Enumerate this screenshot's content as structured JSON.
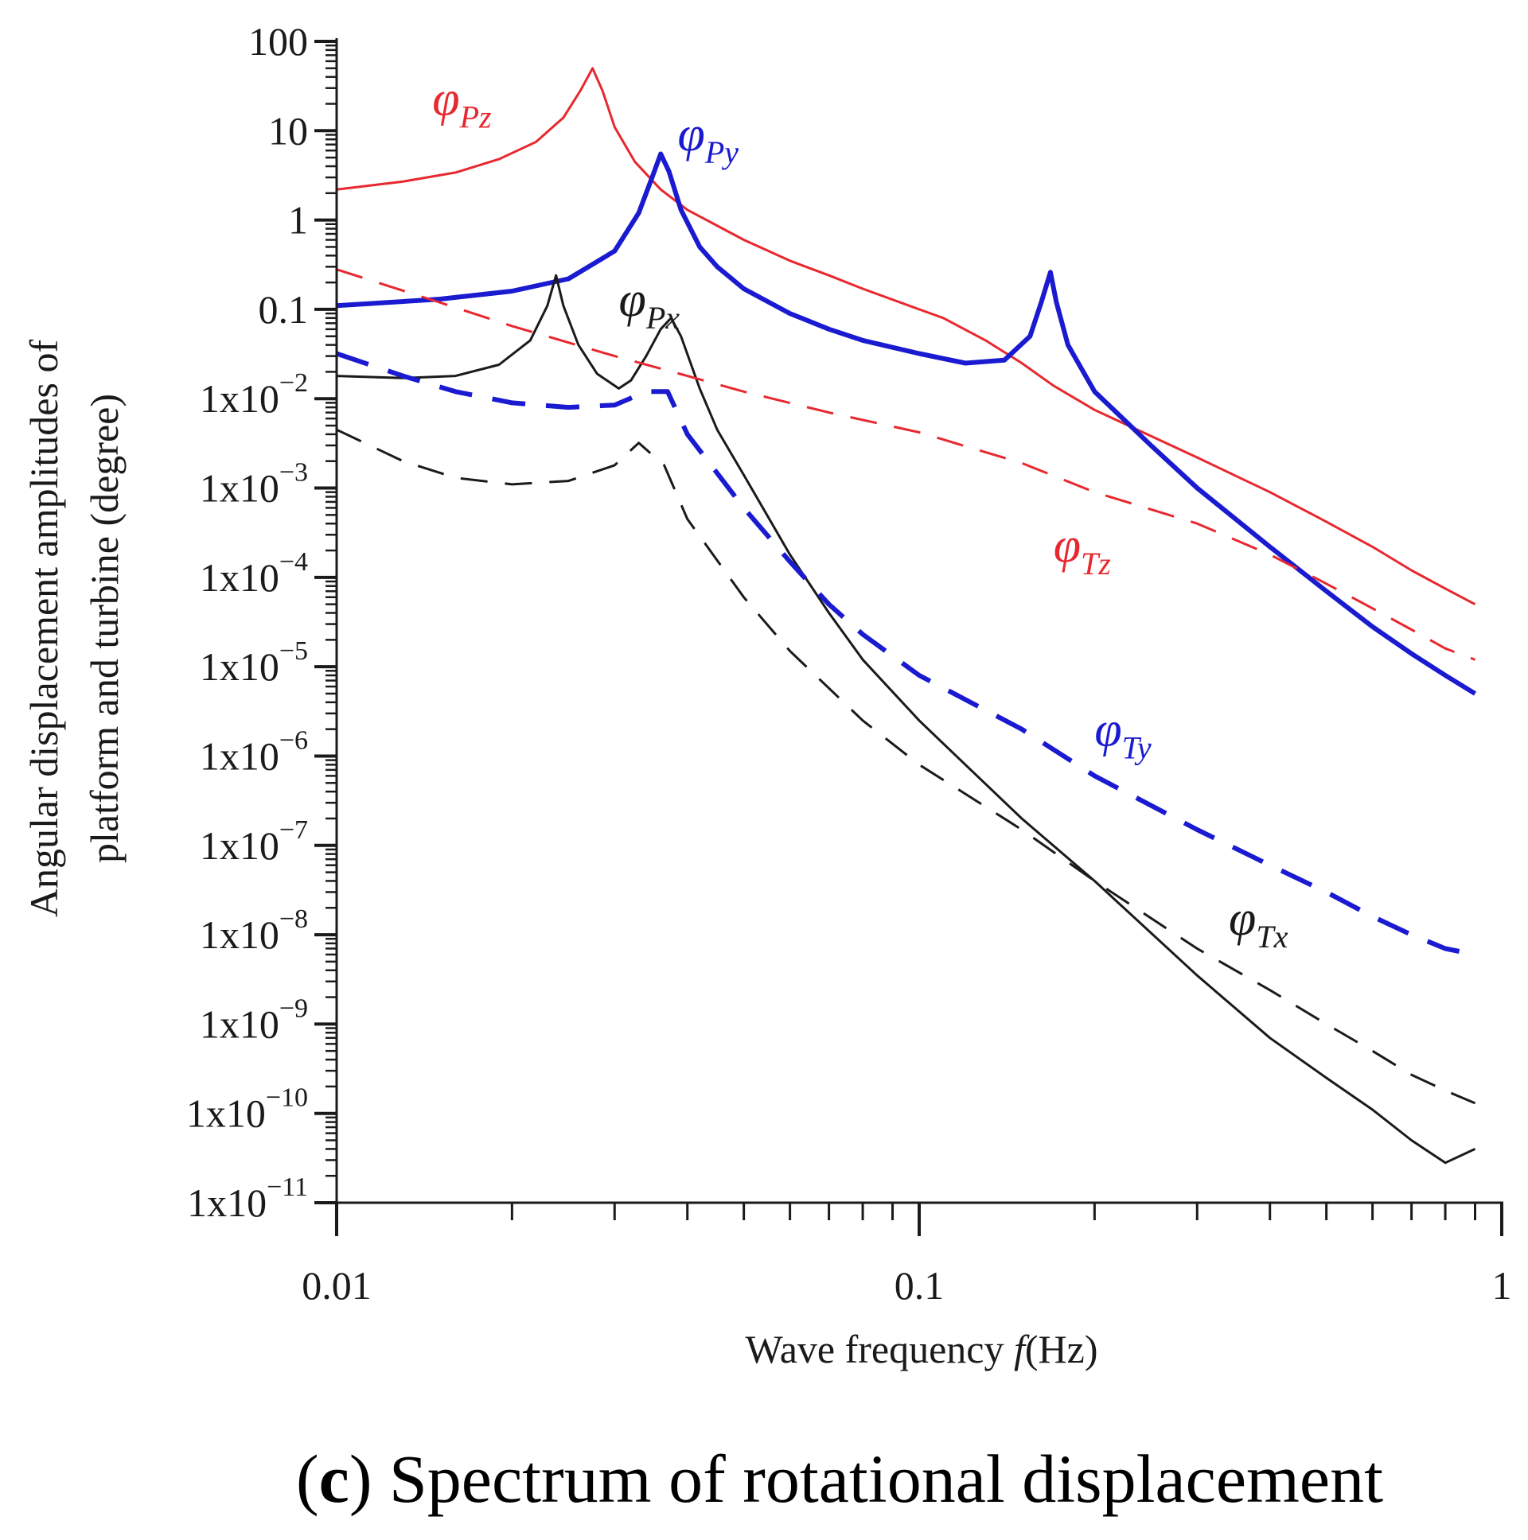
{
  "chart_data": {
    "type": "line",
    "title": "",
    "caption": {
      "label": "c",
      "text": "Spectrum of rotational displacement"
    },
    "xlabel": "Wave frequency ",
    "xlabel_var": "f",
    "xlabel_unit": "(Hz)",
    "ylabel_line1": "Angular displacement amplitudes of",
    "ylabel_line2": "platform and turbine (degree)",
    "xscale": "log",
    "yscale": "log",
    "xlim": [
      0.01,
      1
    ],
    "ylim": [
      1e-11,
      100
    ],
    "xticks": [
      {
        "value": 0.01,
        "label": "0.01"
      },
      {
        "value": 0.1,
        "label": "0.1"
      },
      {
        "value": 1,
        "label": "1"
      }
    ],
    "yticks": [
      {
        "value": 100,
        "label": "100",
        "base": "",
        "exp": ""
      },
      {
        "value": 10,
        "label": "10",
        "base": "",
        "exp": ""
      },
      {
        "value": 1,
        "label": "1",
        "base": "",
        "exp": ""
      },
      {
        "value": 0.1,
        "label": "0.1",
        "base": "",
        "exp": ""
      },
      {
        "value": 0.01,
        "label": "",
        "base": "1x10",
        "exp": "−2"
      },
      {
        "value": 0.001,
        "label": "",
        "base": "1x10",
        "exp": "−3"
      },
      {
        "value": 0.0001,
        "label": "",
        "base": "1x10",
        "exp": "−4"
      },
      {
        "value": 1e-05,
        "label": "",
        "base": "1x10",
        "exp": "−5"
      },
      {
        "value": 1e-06,
        "label": "",
        "base": "1x10",
        "exp": "−6"
      },
      {
        "value": 1e-07,
        "label": "",
        "base": "1x10",
        "exp": "−7"
      },
      {
        "value": 1e-08,
        "label": "",
        "base": "1x10",
        "exp": "−8"
      },
      {
        "value": 1e-09,
        "label": "",
        "base": "1x10",
        "exp": "−9"
      },
      {
        "value": 1e-10,
        "label": "",
        "base": "1x10",
        "exp": "−10"
      },
      {
        "value": 1e-11,
        "label": "",
        "base": "1x10",
        "exp": "−11"
      }
    ],
    "grid": false,
    "legend": "inline labels",
    "series": [
      {
        "name": "φPz",
        "symbol": "φ",
        "subscript": "Pz",
        "color": "#e8282f",
        "style": "solid",
        "width": "thin",
        "label_at": [
          0.0146,
          15
        ],
        "points": [
          [
            0.01,
            2.2
          ],
          [
            0.013,
            2.7
          ],
          [
            0.016,
            3.4
          ],
          [
            0.019,
            4.8
          ],
          [
            0.022,
            7.5
          ],
          [
            0.0245,
            14
          ],
          [
            0.0262,
            28
          ],
          [
            0.0275,
            50
          ],
          [
            0.0286,
            28
          ],
          [
            0.03,
            11
          ],
          [
            0.0325,
            4.5
          ],
          [
            0.036,
            2.2
          ],
          [
            0.04,
            1.3
          ],
          [
            0.05,
            0.6
          ],
          [
            0.06,
            0.35
          ],
          [
            0.07,
            0.24
          ],
          [
            0.08,
            0.17
          ],
          [
            0.1,
            0.1
          ],
          [
            0.11,
            0.08
          ],
          [
            0.13,
            0.045
          ],
          [
            0.15,
            0.025
          ],
          [
            0.17,
            0.014
          ],
          [
            0.2,
            0.0075
          ],
          [
            0.3,
            0.0022
          ],
          [
            0.4,
            0.0009
          ],
          [
            0.5,
            0.00042
          ],
          [
            0.6,
            0.00022
          ],
          [
            0.7,
            0.00012
          ],
          [
            0.8,
            7.5e-05
          ],
          [
            0.9,
            5e-05
          ]
        ]
      },
      {
        "name": "φPy",
        "symbol": "φ",
        "subscript": "Py",
        "color": "#1a1ad0",
        "style": "solid",
        "width": "thick",
        "label_at": [
          0.0385,
          6
        ],
        "points": [
          [
            0.01,
            0.11
          ],
          [
            0.015,
            0.13
          ],
          [
            0.02,
            0.16
          ],
          [
            0.025,
            0.22
          ],
          [
            0.03,
            0.45
          ],
          [
            0.033,
            1.2
          ],
          [
            0.0348,
            3
          ],
          [
            0.036,
            5.5
          ],
          [
            0.0372,
            3.5
          ],
          [
            0.039,
            1.3
          ],
          [
            0.042,
            0.5
          ],
          [
            0.045,
            0.3
          ],
          [
            0.05,
            0.17
          ],
          [
            0.06,
            0.09
          ],
          [
            0.07,
            0.06
          ],
          [
            0.08,
            0.045
          ],
          [
            0.1,
            0.032
          ],
          [
            0.12,
            0.025
          ],
          [
            0.14,
            0.027
          ],
          [
            0.155,
            0.05
          ],
          [
            0.162,
            0.12
          ],
          [
            0.168,
            0.26
          ],
          [
            0.172,
            0.12
          ],
          [
            0.18,
            0.04
          ],
          [
            0.2,
            0.012
          ],
          [
            0.25,
            0.003
          ],
          [
            0.3,
            0.001
          ],
          [
            0.4,
            0.00022
          ],
          [
            0.5,
            7e-05
          ],
          [
            0.6,
            2.8e-05
          ],
          [
            0.7,
            1.4e-05
          ],
          [
            0.8,
            8e-06
          ],
          [
            0.9,
            5e-06
          ]
        ]
      },
      {
        "name": "φPx",
        "symbol": "φ",
        "subscript": "Px",
        "color": "#1a1a1a",
        "style": "solid",
        "width": "thin",
        "label_at": [
          0.0305,
          0.085
        ],
        "points": [
          [
            0.01,
            0.018
          ],
          [
            0.013,
            0.017
          ],
          [
            0.016,
            0.018
          ],
          [
            0.019,
            0.024
          ],
          [
            0.0215,
            0.045
          ],
          [
            0.023,
            0.11
          ],
          [
            0.0238,
            0.24
          ],
          [
            0.0245,
            0.11
          ],
          [
            0.026,
            0.04
          ],
          [
            0.028,
            0.019
          ],
          [
            0.0305,
            0.013
          ],
          [
            0.032,
            0.016
          ],
          [
            0.034,
            0.03
          ],
          [
            0.036,
            0.06
          ],
          [
            0.0375,
            0.08
          ],
          [
            0.039,
            0.05
          ],
          [
            0.042,
            0.013
          ],
          [
            0.045,
            0.0045
          ],
          [
            0.05,
            0.0014
          ],
          [
            0.06,
            0.00018
          ],
          [
            0.07,
            4e-05
          ],
          [
            0.08,
            1.2e-05
          ],
          [
            0.1,
            2.5e-06
          ],
          [
            0.12,
            8e-07
          ],
          [
            0.15,
            2e-07
          ],
          [
            0.2,
            4e-08
          ],
          [
            0.3,
            3.5e-09
          ],
          [
            0.4,
            7e-10
          ],
          [
            0.5,
            2.5e-10
          ],
          [
            0.6,
            1.1e-10
          ],
          [
            0.7,
            5e-11
          ],
          [
            0.8,
            2.8e-11
          ],
          [
            0.9,
            4e-11
          ]
        ]
      },
      {
        "name": "φTz",
        "symbol": "φ",
        "subscript": "Tz",
        "color": "#e8282f",
        "style": "dashed",
        "width": "thin",
        "label_at": [
          0.17,
          0.00015
        ],
        "points": [
          [
            0.01,
            0.28
          ],
          [
            0.015,
            0.12
          ],
          [
            0.02,
            0.065
          ],
          [
            0.03,
            0.03
          ],
          [
            0.04,
            0.018
          ],
          [
            0.05,
            0.012
          ],
          [
            0.07,
            0.007
          ],
          [
            0.1,
            0.0042
          ],
          [
            0.15,
            0.0019
          ],
          [
            0.2,
            0.0009
          ],
          [
            0.3,
            0.0004
          ],
          [
            0.4,
            0.00018
          ],
          [
            0.5,
            8.5e-05
          ],
          [
            0.6,
            4.5e-05
          ],
          [
            0.7,
            2.6e-05
          ],
          [
            0.8,
            1.6e-05
          ],
          [
            0.9,
            1.2e-05
          ]
        ]
      },
      {
        "name": "φTy",
        "symbol": "φ",
        "subscript": "Ty",
        "color": "#1a1ad0",
        "style": "dashed",
        "width": "thick",
        "label_at": [
          0.2,
          1.3e-06
        ],
        "points": [
          [
            0.01,
            0.032
          ],
          [
            0.013,
            0.018
          ],
          [
            0.016,
            0.012
          ],
          [
            0.02,
            0.009
          ],
          [
            0.025,
            0.008
          ],
          [
            0.03,
            0.0085
          ],
          [
            0.034,
            0.012
          ],
          [
            0.037,
            0.012
          ],
          [
            0.04,
            0.004
          ],
          [
            0.05,
            0.0006
          ],
          [
            0.06,
            0.00015
          ],
          [
            0.07,
            5e-05
          ],
          [
            0.08,
            2.3e-05
          ],
          [
            0.1,
            8e-06
          ],
          [
            0.15,
            2e-06
          ],
          [
            0.2,
            6e-07
          ],
          [
            0.3,
            1.5e-07
          ],
          [
            0.4,
            6e-08
          ],
          [
            0.5,
            3e-08
          ],
          [
            0.6,
            1.6e-08
          ],
          [
            0.7,
            1e-08
          ],
          [
            0.8,
            7e-09
          ],
          [
            0.9,
            6e-09
          ]
        ]
      },
      {
        "name": "φTx",
        "symbol": "φ",
        "subscript": "Tx",
        "color": "#1a1a1a",
        "style": "dashed",
        "width": "thin",
        "label_at": [
          0.34,
          1e-08
        ],
        "points": [
          [
            0.01,
            0.0045
          ],
          [
            0.013,
            0.002
          ],
          [
            0.016,
            0.0013
          ],
          [
            0.02,
            0.0011
          ],
          [
            0.025,
            0.0012
          ],
          [
            0.03,
            0.0018
          ],
          [
            0.033,
            0.0032
          ],
          [
            0.0365,
            0.0018
          ],
          [
            0.04,
            0.00045
          ],
          [
            0.05,
            6e-05
          ],
          [
            0.06,
            1.5e-05
          ],
          [
            0.08,
            2.5e-06
          ],
          [
            0.1,
            8e-07
          ],
          [
            0.15,
            1.5e-07
          ],
          [
            0.2,
            4e-08
          ],
          [
            0.3,
            7e-09
          ],
          [
            0.4,
            2.4e-09
          ],
          [
            0.5,
            1e-09
          ],
          [
            0.6,
            5e-10
          ],
          [
            0.7,
            2.7e-10
          ],
          [
            0.8,
            1.8e-10
          ],
          [
            0.9,
            1.3e-10
          ]
        ]
      }
    ]
  }
}
